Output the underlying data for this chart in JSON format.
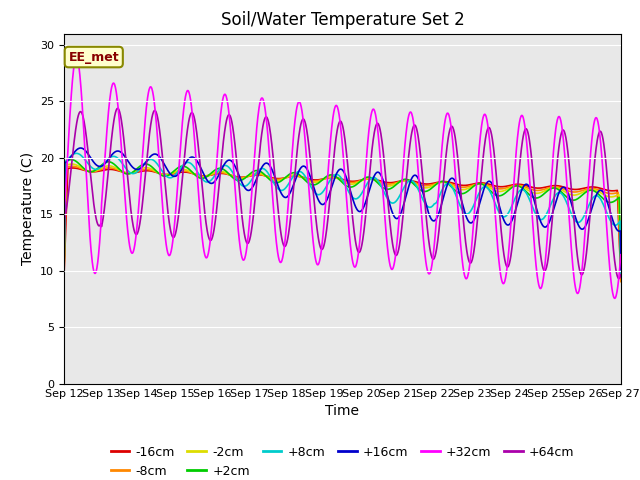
{
  "title": "Soil/Water Temperature Set 2",
  "xlabel": "Time",
  "ylabel": "Temperature (C)",
  "ylim": [
    0,
    31
  ],
  "yticks": [
    0,
    5,
    10,
    15,
    20,
    25,
    30
  ],
  "x_tick_labels": [
    "Sep 12",
    "Sep 13",
    "Sep 14",
    "Sep 15",
    "Sep 16",
    "Sep 17",
    "Sep 18",
    "Sep 19",
    "Sep 20",
    "Sep 21",
    "Sep 22",
    "Sep 23",
    "Sep 24",
    "Sep 25",
    "Sep 26",
    "Sep 27"
  ],
  "series": [
    {
      "label": "-16cm",
      "color": "#dd0000"
    },
    {
      "label": "-8cm",
      "color": "#ff8800"
    },
    {
      "label": "-2cm",
      "color": "#dddd00"
    },
    {
      "label": "+2cm",
      "color": "#00cc00"
    },
    {
      "label": "+8cm",
      "color": "#00cccc"
    },
    {
      "label": "+16cm",
      "color": "#0000cc"
    },
    {
      "label": "+32cm",
      "color": "#ff00ff"
    },
    {
      "label": "+64cm",
      "color": "#aa00aa"
    }
  ],
  "annotation_text": "EE_met",
  "bg_color": "#e8e8e8",
  "fig_bg": "#ffffff",
  "linewidth": 1.2
}
